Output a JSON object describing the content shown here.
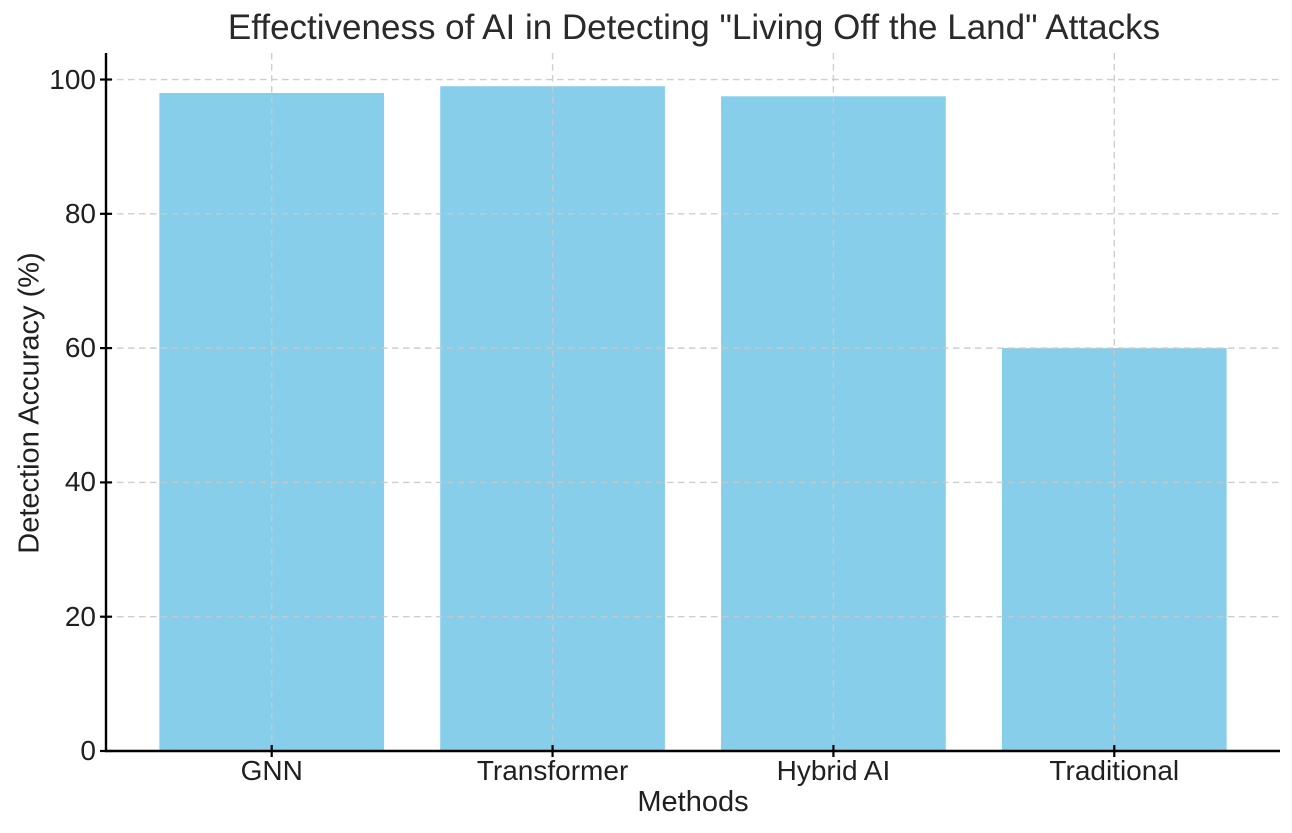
{
  "figure": {
    "background": "#ffffff",
    "text_color": "#202020",
    "spine_color": "#000000",
    "grid_color": "#c9c9c9",
    "accent_bar_color": "#87CEEB"
  },
  "chart_data": {
    "type": "bar",
    "title": "Effectiveness of AI in Detecting \"Living Off the Land\" Attacks",
    "xlabel": "Methods",
    "ylabel": "Detection Accuracy (%)",
    "categories": [
      "GNN",
      "Transformer",
      "Hybrid AI",
      "Traditional"
    ],
    "values": [
      98,
      99,
      97.5,
      60
    ],
    "series": [
      {
        "name": "Detection Accuracy",
        "values": [
          98,
          99,
          97.5,
          60
        ]
      }
    ],
    "yticks": [
      "0",
      "20",
      "40",
      "60",
      "80",
      "100"
    ],
    "ytick_values": [
      0,
      20,
      40,
      60,
      80,
      100
    ],
    "ylim": [
      0,
      103.95
    ],
    "bar_color": "#87CEEB",
    "bar_width_fraction": 0.8,
    "grid": "dashed gridlines on both axes, light gray, drawn above bars",
    "legend_position": "none"
  }
}
